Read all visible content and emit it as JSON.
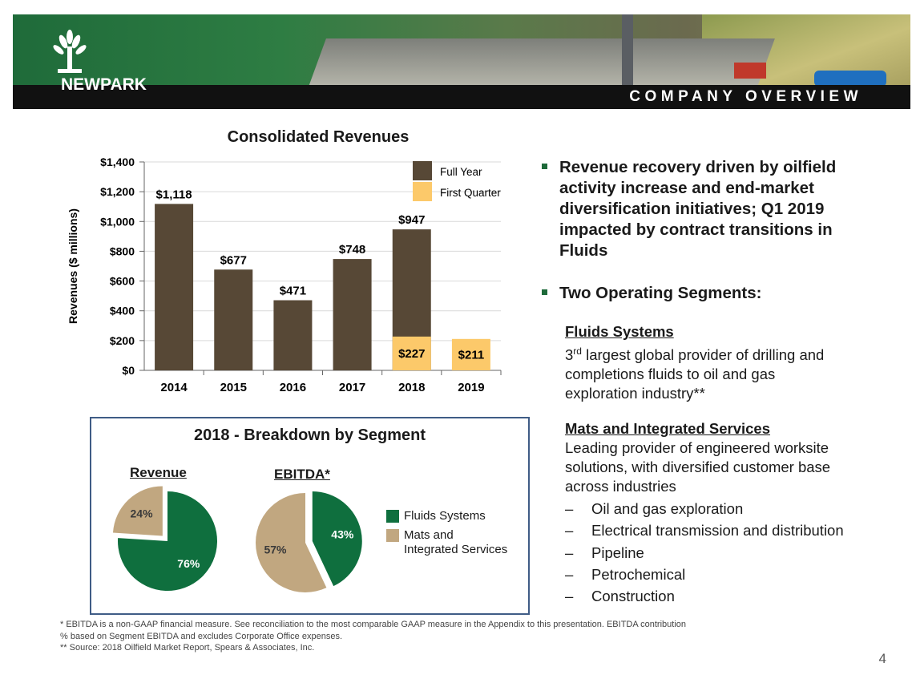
{
  "header": {
    "company": "NEWPARK",
    "section": "COMPANY OVERVIEW"
  },
  "colors": {
    "full_year": "#574836",
    "first_quarter": "#fcc96a",
    "fluids": "#0f6f3e",
    "mats": "#c1a780",
    "accent": "#1e6a3a"
  },
  "chart_data": [
    {
      "type": "bar",
      "title": "Consolidated Revenues",
      "ylabel": "Revenues ($ millions)",
      "xlabel": "",
      "categories": [
        "2014",
        "2015",
        "2016",
        "2017",
        "2018",
        "2019"
      ],
      "series": [
        {
          "name": "Full Year",
          "values": [
            1118,
            677,
            471,
            748,
            947,
            null
          ]
        },
        {
          "name": "First Quarter",
          "values": [
            null,
            null,
            null,
            null,
            227,
            211
          ]
        }
      ],
      "data_labels": {
        "full_year": [
          "$1,118",
          "$677",
          "$471",
          "$748",
          "$947",
          ""
        ],
        "first_quarter": [
          "",
          "",
          "",
          "",
          "$227",
          "$211"
        ]
      },
      "ylim": [
        0,
        1400
      ],
      "yticks": [
        0,
        200,
        400,
        600,
        800,
        1000,
        1200,
        1400
      ],
      "ytick_labels": [
        "$0",
        "$200",
        "$400",
        "$600",
        "$800",
        "$1,000",
        "$1,200",
        "$1,400"
      ],
      "grid": true,
      "legend": "top-right"
    },
    {
      "type": "pie",
      "title": "Revenue",
      "labels": [
        "Fluids Systems",
        "Mats and Integrated Services"
      ],
      "values": [
        76,
        24
      ],
      "value_labels": [
        "76%",
        "24%"
      ],
      "exploded": "Mats and Integrated Services"
    },
    {
      "type": "pie",
      "title": "EBITDA*",
      "labels": [
        "Fluids Systems",
        "Mats and Integrated Services"
      ],
      "values": [
        43,
        57
      ],
      "value_labels": [
        "43%",
        "57%"
      ],
      "exploded": "Fluids Systems"
    }
  ],
  "segment_box": {
    "title": "2018 - Breakdown by Segment",
    "revenue_label": "Revenue",
    "ebitda_label": "EBITDA*",
    "legend": {
      "fluids": "Fluids Systems",
      "mats_line1": "Mats and",
      "mats_line2": "Integrated Services"
    }
  },
  "bullets": {
    "b1_lines": [
      "Revenue recovery driven by oilfield",
      "activity increase and end-market",
      "diversification initiatives; Q1 2019",
      "impacted by contract transitions in",
      "Fluids"
    ],
    "b2": "Two Operating Segments:",
    "fluids_heading": "Fluids Systems",
    "fluids_ord": "3",
    "fluids_sup": "rd",
    "fluids_l1": " largest global provider of drilling and",
    "fluids_l2": "completions fluids to oil and gas",
    "fluids_l3": "exploration industry**",
    "mats_heading": "Mats and Integrated Services",
    "mats_l1": "Leading provider of engineered worksite",
    "mats_l2": "solutions, with diversified customer base",
    "mats_l3": "across industries",
    "dash_char": "–",
    "industries": [
      "Oil and gas exploration",
      "Electrical transmission and distribution",
      "Pipeline",
      "Petrochemical",
      "Construction"
    ]
  },
  "footnotes": {
    "f1": "*  EBITDA is a non-GAAP financial measure. See reconciliation to the most comparable GAAP measure in the Appendix to this presentation. EBITDA contribution",
    "f2": "% based on Segment EBITDA and excludes Corporate Office expenses.",
    "f3": "** Source:  2018 Oilfield Market Report, Spears & Associates, Inc."
  },
  "page_number": "4"
}
